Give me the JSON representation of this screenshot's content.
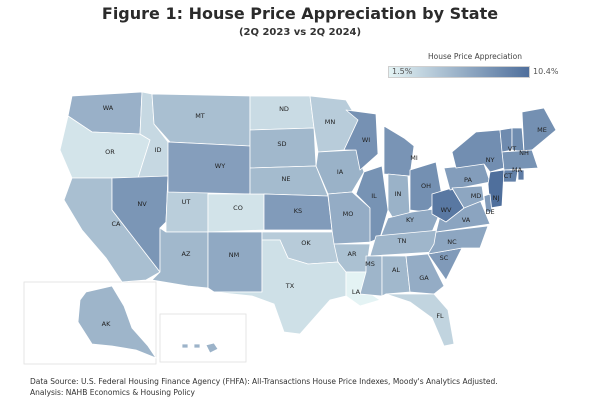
{
  "title": "Figure 1: House Price Appreciation by State",
  "subtitle": "(2Q 2023 vs 2Q 2024)",
  "legend": {
    "title": "House Price Appreciation",
    "min_label": "1.5%",
    "max_label": "10.4%",
    "min_value": 1.5,
    "max_value": 10.4,
    "color_low": "#e4f3f4",
    "color_high": "#4f6f9c"
  },
  "source_line": "Data Source: U.S. Federal Housing Finance Agency (FHFA): All-Transactions House Price Indexes, Moody's Analytics Adjusted.",
  "analysis_line": "Analysis: NAHB Economics & Housing Policy",
  "chart_data": {
    "type": "choropleth",
    "metric": "House price appreciation (%), 2Q 2023 vs 2Q 2024",
    "states": [
      {
        "code": "WA",
        "value": 6.0
      },
      {
        "code": "OR",
        "value": 2.5
      },
      {
        "code": "CA",
        "value": 5.0
      },
      {
        "code": "ID",
        "value": 3.3
      },
      {
        "code": "NV",
        "value": 7.8
      },
      {
        "code": "UT",
        "value": 4.0
      },
      {
        "code": "AZ",
        "value": 5.5
      },
      {
        "code": "MT",
        "value": 5.0
      },
      {
        "code": "WY",
        "value": 7.2
      },
      {
        "code": "CO",
        "value": 2.6
      },
      {
        "code": "NM",
        "value": 6.5
      },
      {
        "code": "ND",
        "value": 3.1
      },
      {
        "code": "SD",
        "value": 5.5
      },
      {
        "code": "NE",
        "value": 5.3
      },
      {
        "code": "KS",
        "value": 7.4
      },
      {
        "code": "OK",
        "value": 4.2
      },
      {
        "code": "TX",
        "value": 2.8
      },
      {
        "code": "MN",
        "value": 4.1
      },
      {
        "code": "IA",
        "value": 5.9
      },
      {
        "code": "MO",
        "value": 6.3
      },
      {
        "code": "AR",
        "value": 4.9
      },
      {
        "code": "LA",
        "value": 1.5
      },
      {
        "code": "WI",
        "value": 8.1
      },
      {
        "code": "IL",
        "value": 8.0
      },
      {
        "code": "MI",
        "value": 7.9
      },
      {
        "code": "IN",
        "value": 5.9
      },
      {
        "code": "OH",
        "value": 8.2
      },
      {
        "code": "KY",
        "value": 6.5
      },
      {
        "code": "TN",
        "value": 5.6
      },
      {
        "code": "MS",
        "value": 5.7
      },
      {
        "code": "AL",
        "value": 5.5
      },
      {
        "code": "GA",
        "value": 6.3
      },
      {
        "code": "FL",
        "value": 3.6
      },
      {
        "code": "SC",
        "value": 7.5
      },
      {
        "code": "NC",
        "value": 6.7
      },
      {
        "code": "VA",
        "value": 6.8
      },
      {
        "code": "WV",
        "value": 9.8
      },
      {
        "code": "PA",
        "value": 7.3
      },
      {
        "code": "NY",
        "value": 8.3
      },
      {
        "code": "VT",
        "value": 8.5
      },
      {
        "code": "NH",
        "value": 8.4
      },
      {
        "code": "ME",
        "value": 8.2
      },
      {
        "code": "MA",
        "value": 8.0
      },
      {
        "code": "CT",
        "value": 9.2
      },
      {
        "code": "RI",
        "value": 9.5
      },
      {
        "code": "NJ",
        "value": 10.4
      },
      {
        "code": "DE",
        "value": 7.4
      },
      {
        "code": "MD",
        "value": 6.7
      },
      {
        "code": "AK",
        "value": 5.7
      },
      {
        "code": "HI",
        "value": 5.8
      }
    ]
  }
}
